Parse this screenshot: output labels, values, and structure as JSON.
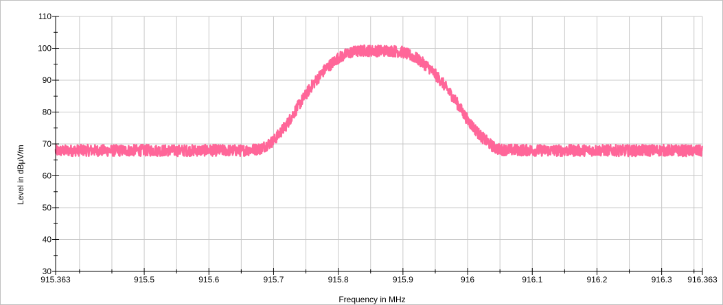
{
  "chart_data": {
    "type": "line",
    "title": "",
    "xlabel": "Frequency in MHz",
    "ylabel": "Level in dBμV/m",
    "xlim": [
      915.363,
      916.363
    ],
    "ylim": [
      30,
      110
    ],
    "x_ticks": [
      915.363,
      915.5,
      915.6,
      915.7,
      915.8,
      915.9,
      916,
      916.1,
      916.2,
      916.3,
      916.363
    ],
    "x_tick_labels": [
      "915.363",
      "915.5",
      "915.6",
      "915.7",
      "915.8",
      "915.9",
      "916",
      "916.1",
      "916.2",
      "916.3",
      "916.363"
    ],
    "x_minor_ticks": [
      915.4,
      915.45,
      915.55,
      915.65,
      915.75,
      915.85,
      915.95,
      916.05,
      916.15,
      916.25,
      916.35
    ],
    "y_ticks": [
      30,
      40,
      50,
      60,
      70,
      80,
      90,
      100,
      110
    ],
    "y_tick_labels": [
      "30",
      "40",
      "50",
      "60",
      "70",
      "80",
      "90",
      "100",
      "110"
    ],
    "grid": true,
    "legend": "none",
    "colors": {
      "series": "#ff6699",
      "grid": "#c8c8c8",
      "axis": "#000000"
    },
    "series": [
      {
        "x": [
          915.363,
          915.4,
          915.45,
          915.5,
          915.55,
          915.6,
          915.65,
          915.68,
          915.7,
          915.72,
          915.74,
          915.76,
          915.78,
          915.8,
          915.82,
          915.84,
          915.86,
          915.88,
          915.9,
          915.92,
          915.94,
          915.96,
          915.98,
          916,
          916.02,
          916.04,
          916.05,
          916.1,
          916.15,
          916.2,
          916.25,
          916.3,
          916.363
        ],
        "y": [
          67.8,
          68.0,
          67.9,
          68.0,
          67.9,
          68.0,
          67.9,
          68.5,
          71.0,
          76.0,
          82.5,
          88.5,
          93.5,
          97.0,
          98.8,
          99.3,
          99.2,
          99.3,
          98.8,
          97.0,
          94.0,
          89.5,
          84.0,
          77.5,
          72.5,
          69.0,
          68.2,
          68.0,
          67.9,
          68.0,
          67.9,
          68.0,
          67.8
        ],
        "noise_band": 1.8
      }
    ]
  }
}
